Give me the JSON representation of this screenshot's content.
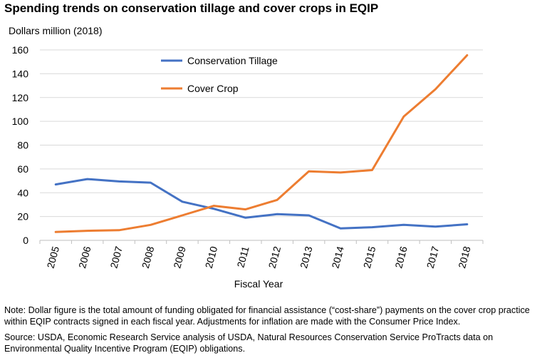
{
  "chart_data": {
    "type": "line",
    "title": "Spending trends on conservation tillage and cover crops in EQIP",
    "ylabel": "Dollars million (2018)",
    "xlabel": "Fiscal Year",
    "categories": [
      "2005",
      "2006",
      "2007",
      "2008",
      "2009",
      "2010",
      "2011",
      "2012",
      "2013",
      "2014",
      "2015",
      "2016",
      "2017",
      "2018"
    ],
    "ylim": [
      0,
      160
    ],
    "yticks": [
      0,
      20,
      40,
      60,
      80,
      100,
      120,
      140,
      160
    ],
    "grid": true,
    "legend_position": "top-center",
    "series": [
      {
        "name": "Conservation Tillage",
        "color": "#4472c4",
        "values": [
          47,
          51.5,
          49.5,
          48.5,
          32.5,
          26.5,
          19,
          22,
          21,
          10,
          11,
          13,
          11.5,
          13.5
        ]
      },
      {
        "name": "Cover Crop",
        "color": "#ed7d31",
        "values": [
          7,
          8,
          8.5,
          13,
          21,
          29,
          26,
          34,
          58,
          57,
          59,
          104,
          127,
          155.5
        ]
      }
    ]
  },
  "notes": {
    "note": "Note: Dollar figure is the total amount of funding obligated for financial assistance (“cost-share”) payments on the cover crop practice within EQIP contracts signed in each fiscal year. Adjustments for inflation are made with the Consumer Price Index.",
    "source": "Source: USDA, Economic Research Service analysis of USDA, Natural Resources Conservation Service ProTracts data on Environmental Quality Incentive Program (EQIP) obligations."
  }
}
